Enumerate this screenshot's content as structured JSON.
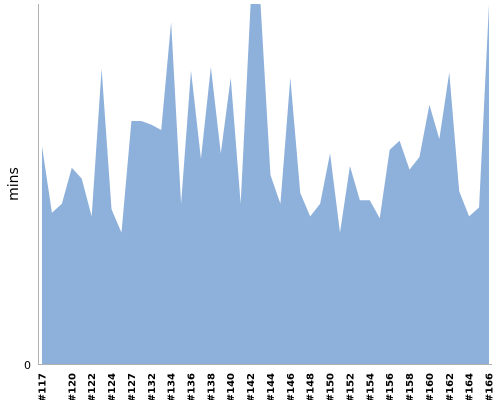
{
  "chart_data": {
    "type": "area",
    "ylabel": "mins",
    "y_tick_labels": [
      "0"
    ],
    "ylim": [
      0,
      100
    ],
    "x_tick_labels": [
      "#117",
      "#120",
      "#122",
      "#124",
      "#127",
      "#132",
      "#134",
      "#136",
      "#138",
      "#140",
      "#142",
      "#144",
      "#146",
      "#148",
      "#150",
      "#152",
      "#154",
      "#156",
      "#158",
      "#160",
      "#162",
      "#164",
      "#166"
    ],
    "series": [
      {
        "color": "#8eb1db",
        "x": [
          "#117",
          "#118",
          "#119",
          "#120",
          "#121",
          "#122",
          "#123",
          "#124",
          "#125",
          "#127",
          "#128",
          "#132",
          "#133",
          "#134",
          "#135",
          "#136",
          "#137",
          "#138",
          "#139",
          "#140",
          "#141",
          "#142",
          "#143",
          "#144",
          "#145",
          "#146",
          "#147",
          "#148",
          "#149",
          "#150",
          "#151",
          "#152",
          "#153",
          "#154",
          "#155",
          "#156",
          "#157",
          "#158",
          "#159",
          "#160",
          "#161",
          "#162",
          "#163",
          "#164",
          "#165",
          "#166"
        ],
        "values": [
          60.5,
          42,
          44.5,
          54.5,
          51.5,
          41,
          82,
          43,
          36.5,
          67.5,
          67.5,
          66.5,
          65,
          95,
          44.5,
          81.5,
          57,
          82.5,
          58.5,
          79.5,
          44.5,
          100,
          100,
          52.5,
          44.5,
          79.5,
          47.5,
          41,
          44.5,
          58.5,
          36.5,
          55,
          45.5,
          45.5,
          40.5,
          59.5,
          62,
          54,
          57.5,
          72,
          62.5,
          81,
          48,
          41,
          43.5,
          100
        ]
      }
    ]
  }
}
